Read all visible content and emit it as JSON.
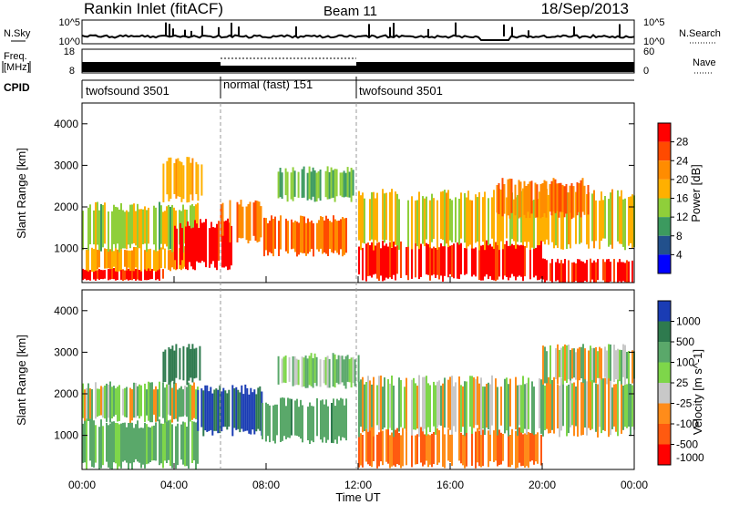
{
  "header": {
    "title": "Rankin Inlet (fitACF)",
    "beam": "Beam 11",
    "date": "18/Sep/2013"
  },
  "panels": {
    "noise": {
      "left_label": "N.Sky",
      "right_label": "N.Search",
      "left_ticks": [
        "10^5",
        "10^0"
      ],
      "right_ticks": [
        "10^5",
        "10^0"
      ]
    },
    "freq": {
      "left_label_1": "Freq.",
      "left_label_2": "[MHz]",
      "right_label": "Nave",
      "left_ticks": [
        "18",
        "8"
      ],
      "right_ticks": [
        "60",
        "0"
      ]
    },
    "cpid": {
      "label": "CPID",
      "segments": [
        {
          "label": "twofsound 3501",
          "start_hour": 0,
          "end_hour": 6
        },
        {
          "label": "normal (fast) 151",
          "start_hour": 6,
          "end_hour": 12
        },
        {
          "label": "twofsound 3501",
          "start_hour": 12,
          "end_hour": 24
        }
      ]
    },
    "power": {
      "colorbar_label": "Power [dB]",
      "colorbar_ticks": [
        "28",
        "24",
        "20",
        "16",
        "12",
        "8",
        "4"
      ],
      "colors": [
        "#ff0000",
        "#ff4a00",
        "#ff8c00",
        "#ffb000",
        "#8fcf3a",
        "#3c9a5f",
        "#22508c",
        "#0000ff"
      ]
    },
    "velocity": {
      "colorbar_label": "Velocity [m s^-1]",
      "colorbar_ticks": [
        "1000",
        "500",
        "100",
        "25",
        "-25",
        "-100",
        "-500",
        "-1000"
      ],
      "colors": [
        "#1a3cb4",
        "#2e7a4e",
        "#5aa86a",
        "#7ed64a",
        "#c8c8c8",
        "#ff8c1a",
        "#ff5a10",
        "#ff0000"
      ]
    }
  },
  "axes": {
    "y_label": "Slant Range [km]",
    "y_ticks": [
      "4000",
      "3000",
      "2000",
      "1000"
    ],
    "x_label": "Time UT",
    "x_ticks": [
      "00:00",
      "04:00",
      "08:00",
      "12:00",
      "16:00",
      "20:00",
      "00:00"
    ]
  },
  "chart_data": [
    {
      "type": "heatmap",
      "title": "Power",
      "xlabel": "Time UT",
      "ylabel": "Slant Range [km]",
      "x_range_hours": [
        0,
        24
      ],
      "ylim": [
        180,
        4500
      ],
      "zlim": [
        0,
        30
      ],
      "zlabel": "Power [dB]",
      "regions": [
        {
          "t": [
            0,
            3.5
          ],
          "r": [
            250,
            500
          ],
          "value": 28
        },
        {
          "t": [
            0,
            4.5
          ],
          "r": [
            500,
            1000
          ],
          "value": 18
        },
        {
          "t": [
            0,
            5
          ],
          "r": [
            1000,
            2000
          ],
          "value": 14
        },
        {
          "t": [
            4,
            6.5
          ],
          "r": [
            600,
            1600
          ],
          "value": 28
        },
        {
          "t": [
            3.5,
            5.2
          ],
          "r": [
            2200,
            3100
          ],
          "value": 18
        },
        {
          "t": [
            6,
            7.8
          ],
          "r": [
            1200,
            2100
          ],
          "value": 22
        },
        {
          "t": [
            7.8,
            11.5
          ],
          "r": [
            900,
            1700
          ],
          "value": 22
        },
        {
          "t": [
            8.5,
            12
          ],
          "r": [
            2200,
            2900
          ],
          "value": 12
        },
        {
          "t": [
            12,
            20
          ],
          "r": [
            300,
            1100
          ],
          "value": 28
        },
        {
          "t": [
            12,
            24
          ],
          "r": [
            1100,
            2300
          ],
          "value": 16
        },
        {
          "t": [
            18,
            22
          ],
          "r": [
            1800,
            2600
          ],
          "value": 22
        },
        {
          "t": [
            20,
            24
          ],
          "r": [
            200,
            700
          ],
          "value": 28
        }
      ]
    },
    {
      "type": "heatmap",
      "title": "Velocity",
      "xlabel": "Time UT",
      "ylabel": "Slant Range [km]",
      "x_range_hours": [
        0,
        24
      ],
      "ylim": [
        180,
        4500
      ],
      "zlim": [
        -1000,
        1000
      ],
      "zlabel": "Velocity [m s^-1]",
      "regions": [
        {
          "t": [
            0,
            5
          ],
          "r": [
            300,
            1300
          ],
          "value": 150
        },
        {
          "t": [
            0,
            5
          ],
          "r": [
            1400,
            2200
          ],
          "value": 0
        },
        {
          "t": [
            3.5,
            5.2
          ],
          "r": [
            2300,
            3100
          ],
          "value": 500
        },
        {
          "t": [
            5,
            7.8
          ],
          "r": [
            1100,
            2100
          ],
          "value": 800
        },
        {
          "t": [
            7.8,
            11.5
          ],
          "r": [
            900,
            1800
          ],
          "value": 200
        },
        {
          "t": [
            8.5,
            12
          ],
          "r": [
            2200,
            2900
          ],
          "value": 60
        },
        {
          "t": [
            12,
            20
          ],
          "r": [
            300,
            1100
          ],
          "value": -300
        },
        {
          "t": [
            12,
            24
          ],
          "r": [
            1100,
            2300
          ],
          "value": 0
        },
        {
          "t": [
            20,
            24
          ],
          "r": [
            2300,
            3100
          ],
          "value": 0
        }
      ]
    }
  ]
}
